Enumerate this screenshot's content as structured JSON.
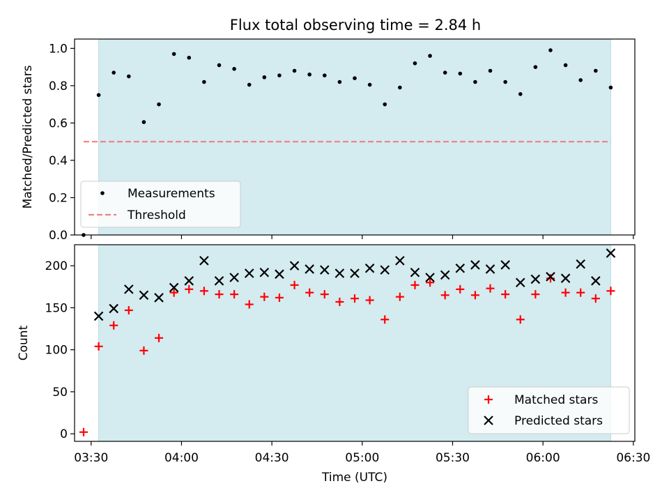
{
  "chart_data": [
    {
      "type": "scatter",
      "panel": "top",
      "title": "Flux total observing time = 2.84 h",
      "ylabel": "Matched/Predicted stars",
      "ylim": [
        0,
        1.05
      ],
      "yticks": [
        0.0,
        0.2,
        0.4,
        0.6,
        0.8,
        1.0
      ],
      "ytick_labels": [
        "0.0",
        "0.2",
        "0.4",
        "0.6",
        "0.8",
        "1.0"
      ],
      "xlim_minutes": [
        204.5,
        390.5
      ],
      "xticks_minutes": [
        210,
        240,
        270,
        300,
        330,
        360,
        390
      ],
      "shaded_region_minutes": [
        212.5,
        382.5
      ],
      "threshold": 0.5,
      "threshold_range_minutes": [
        207.5,
        382.5
      ],
      "legend": {
        "placement": "lower-left",
        "entries": [
          "Measurements",
          "Threshold"
        ]
      },
      "series": [
        {
          "name": "Measurements",
          "x_minutes": [
            207.5,
            212.5,
            217.5,
            222.5,
            227.5,
            232.5,
            237.5,
            242.5,
            247.5,
            252.5,
            257.5,
            262.5,
            267.5,
            272.5,
            277.5,
            282.5,
            287.5,
            292.5,
            297.5,
            302.5,
            307.5,
            312.5,
            317.5,
            322.5,
            327.5,
            332.5,
            337.5,
            342.5,
            347.5,
            352.5,
            357.5,
            362.5,
            367.5,
            372.5,
            377.5,
            382.5
          ],
          "y": [
            0.0,
            0.75,
            0.87,
            0.85,
            0.605,
            0.7,
            0.97,
            0.95,
            0.82,
            0.91,
            0.89,
            0.805,
            0.845,
            0.855,
            0.88,
            0.86,
            0.855,
            0.82,
            0.84,
            0.805,
            0.7,
            0.79,
            0.92,
            0.96,
            0.87,
            0.865,
            0.82,
            0.88,
            0.82,
            0.755,
            0.9,
            0.99,
            0.91,
            0.83,
            0.88,
            0.79
          ]
        }
      ]
    },
    {
      "type": "scatter",
      "panel": "bottom",
      "xlabel": "Time (UTC)",
      "ylabel": "Count",
      "ylim": [
        -9,
        225
      ],
      "yticks": [
        0,
        50,
        100,
        150,
        200
      ],
      "ytick_labels": [
        "0",
        "50",
        "100",
        "150",
        "200"
      ],
      "xlim_minutes": [
        204.5,
        390.5
      ],
      "xticks_minutes": [
        210,
        240,
        270,
        300,
        330,
        360,
        390
      ],
      "xtick_labels": [
        "03:30",
        "04:00",
        "04:30",
        "05:00",
        "05:30",
        "06:00",
        "06:30"
      ],
      "shaded_region_minutes": [
        212.5,
        382.5
      ],
      "legend": {
        "placement": "lower-right",
        "entries": [
          "Matched stars",
          "Predicted stars"
        ]
      },
      "series": [
        {
          "name": "Matched stars",
          "x_minutes": [
            207.5,
            212.5,
            217.5,
            222.5,
            227.5,
            232.5,
            237.5,
            242.5,
            247.5,
            252.5,
            257.5,
            262.5,
            267.5,
            272.5,
            277.5,
            282.5,
            287.5,
            292.5,
            297.5,
            302.5,
            307.5,
            312.5,
            317.5,
            322.5,
            327.5,
            332.5,
            337.5,
            342.5,
            347.5,
            352.5,
            357.5,
            362.5,
            367.5,
            372.5,
            377.5,
            382.5
          ],
          "y": [
            2,
            104,
            129,
            147,
            99,
            114,
            168,
            172,
            170,
            166,
            166,
            154,
            163,
            162,
            177,
            168,
            166,
            157,
            161,
            159,
            136,
            163,
            177,
            180,
            165,
            172,
            165,
            173,
            166,
            136,
            166,
            185,
            168,
            168,
            161,
            170
          ]
        },
        {
          "name": "Predicted stars",
          "x_minutes": [
            212.5,
            217.5,
            222.5,
            227.5,
            232.5,
            237.5,
            242.5,
            247.5,
            252.5,
            257.5,
            262.5,
            267.5,
            272.5,
            277.5,
            282.5,
            287.5,
            292.5,
            297.5,
            302.5,
            307.5,
            312.5,
            317.5,
            322.5,
            327.5,
            332.5,
            337.5,
            342.5,
            347.5,
            352.5,
            357.5,
            362.5,
            367.5,
            372.5,
            377.5,
            382.5
          ],
          "y": [
            140,
            149,
            172,
            165,
            162,
            174,
            182,
            206,
            182,
            186,
            191,
            192,
            190,
            200,
            196,
            195,
            191,
            191,
            197,
            195,
            206,
            192,
            186,
            189,
            197,
            201,
            196,
            201,
            180,
            184,
            187,
            185,
            202,
            182,
            215
          ]
        }
      ]
    }
  ],
  "colors": {
    "shade": "#d4ebf0",
    "shade_edge": "#b5dde3",
    "threshold": "#f08080",
    "matched": "#ff0000",
    "predicted": "#000000",
    "measurement": "#000000"
  }
}
